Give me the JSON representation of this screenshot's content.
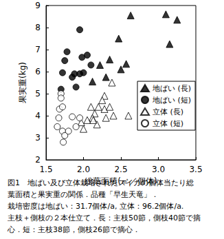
{
  "chart_data": {
    "type": "scatter",
    "title": [
      "図1　地ばい及び立体栽培されたスイカの個体当たり総",
      "葉面積と果実重の関係．品種「早生天竜」．",
      "栽培密度は地ばい：31.7個体/a, 立体：96.2個体/a.",
      "主枝＋側枝の２本仕立て．長：主枝50節，側枝40節で摘",
      "心．短：主枝38節，側枝26節で摘心．"
    ],
    "x_label": "総葉面積(㎡／個体)",
    "y_label": "果実重(kg)",
    "xlim": [
      1.5,
      3.5
    ],
    "xticks": [
      1.5,
      {
        "value": 2,
        "label": "2.0"
      },
      2.5,
      {
        "value": 3,
        "label": "3.0"
      },
      3.5
    ],
    "ylim": [
      2,
      9
    ],
    "yticks": [
      2,
      3,
      4,
      5,
      6,
      7,
      8,
      9
    ],
    "grid": false,
    "legend": "lower right",
    "series": [
      {
        "name": "地ばい (長)",
        "color": "#000000",
        "marker": "triangle",
        "values": [
          [
            2.63,
            8.55
          ],
          [
            3.1,
            8.6
          ],
          [
            3.25,
            8.35
          ],
          [
            3.15,
            7.25
          ],
          [
            2.47,
            7.5
          ],
          [
            2.57,
            6.35
          ],
          [
            2.35,
            6.55
          ],
          [
            2.5,
            6.1
          ],
          [
            2.22,
            6.3
          ],
          [
            2.12,
            5.55
          ],
          [
            2.3,
            5.75
          ]
        ]
      },
      {
        "name": "地ばい (短)",
        "color": "#000000",
        "marker": "circle",
        "values": [
          [
            1.95,
            7.9
          ],
          [
            1.75,
            6.5
          ],
          [
            1.72,
            5.95
          ],
          [
            1.78,
            6.9
          ],
          [
            1.85,
            5.75
          ],
          [
            1.9,
            5.3
          ],
          [
            1.98,
            6.65
          ],
          [
            2.05,
            6.75
          ],
          [
            2.0,
            5.95
          ],
          [
            1.95,
            5.9
          ],
          [
            2.1,
            6.3
          ],
          [
            1.88,
            5.9
          ],
          [
            1.7,
            5.2
          ]
        ]
      },
      {
        "name": "立体 (長)",
        "color": "#000000",
        "marker": "triangle-open",
        "values": [
          [
            2.38,
            5.5
          ],
          [
            2.28,
            4.9
          ],
          [
            2.25,
            4.7
          ],
          [
            2.2,
            4.4
          ],
          [
            2.15,
            4.1
          ],
          [
            2.12,
            3.9
          ],
          [
            2.0,
            3.4
          ],
          [
            2.05,
            3.8
          ],
          [
            2.18,
            3.6
          ],
          [
            2.3,
            3.9
          ],
          [
            2.4,
            4.0
          ],
          [
            2.6,
            4.0
          ],
          [
            2.28,
            4.3
          ],
          [
            2.35,
            4.4
          ],
          [
            2.1,
            4.4
          ],
          [
            1.97,
            3.7
          ],
          [
            2.13,
            3.8
          ]
        ]
      },
      {
        "name": "立体 (短)",
        "color": "#000000",
        "marker": "circle-open",
        "values": [
          [
            1.7,
            5.0
          ],
          [
            1.7,
            4.8
          ],
          [
            1.68,
            4.3
          ],
          [
            1.72,
            4.4
          ],
          [
            1.65,
            3.5
          ],
          [
            1.72,
            3.3
          ],
          [
            1.75,
            3.1
          ],
          [
            1.73,
            2.8
          ],
          [
            1.85,
            3.95
          ],
          [
            1.9,
            3.5
          ],
          [
            1.95,
            3.9
          ],
          [
            1.8,
            3.3
          ],
          [
            1.67,
            3.9
          ]
        ]
      }
    ]
  }
}
